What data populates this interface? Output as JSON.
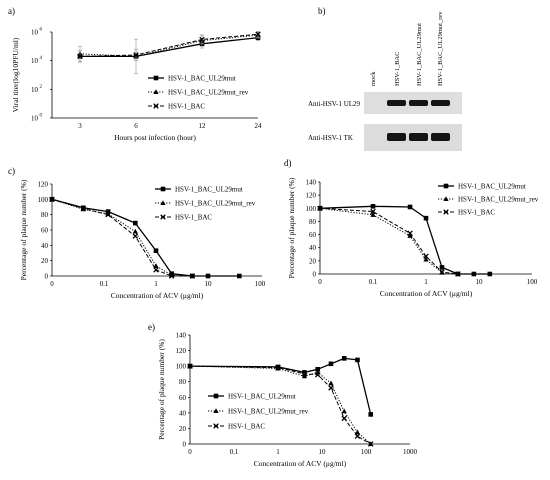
{
  "panels": {
    "a": "a)",
    "b": "b)",
    "c": "c)",
    "d": "d)",
    "e": "e)"
  },
  "colors": {
    "line": "#000000",
    "error": "#999999",
    "blot_bg": "#dcdcdc",
    "band": "#141414"
  },
  "blot": {
    "lanes": [
      "mock",
      "HSV-1_BAC",
      "HSV-1_BAC_UL29mut",
      "HSV-1_BAC_UL29mut_rev"
    ],
    "rows": [
      {
        "label": "Anti-HSV-1 UL29",
        "bands": [
          0,
          1,
          1,
          1
        ]
      },
      {
        "label": "Anti-HSV-1 TK",
        "bands": [
          0,
          1,
          1,
          1
        ]
      }
    ]
  },
  "chart_data": [
    {
      "panel": "a",
      "type": "line",
      "xlabel": "Hours post infection (hour)",
      "ylabel": "Viral titer(log10PFU/ml)",
      "y_scale": "log",
      "x": [
        "3",
        "6",
        "12",
        "24"
      ],
      "y_ticks": [
        "10^0",
        "10^2",
        "10^4",
        "10^6"
      ],
      "ylim": [
        1,
        1000000
      ],
      "legend": "right",
      "series": [
        {
          "name": "HSV-1_BAC_UL29mut",
          "marker": "square",
          "dash": "solid",
          "values": [
            20000,
            20000,
            150000,
            400000
          ],
          "errors": [
            0.4,
            0.3,
            0.3,
            0.2
          ]
        },
        {
          "name": "HSV-1_BAC_UL29mut_rev",
          "marker": "triangle",
          "dash": "dotted",
          "values": [
            30000,
            20000,
            250000,
            600000
          ],
          "errors": [
            0.5,
            1.2,
            0.4,
            0.2
          ]
        },
        {
          "name": "HSV-1_BAC",
          "marker": "x",
          "dash": "dashed",
          "values": [
            20000,
            25000,
            300000,
            700000
          ],
          "errors": [
            0.4,
            0.4,
            0.3,
            0.2
          ]
        }
      ]
    },
    {
      "panel": "c",
      "type": "line",
      "xlabel": "Concentration of ACV (μg/ml)",
      "ylabel": "Percentage of plaque number (%)",
      "x_scale": "log",
      "x_ticks": [
        "0",
        "0.1",
        "1",
        "10",
        "100"
      ],
      "ylim": [
        0,
        120
      ],
      "y_ticks": [
        0,
        20,
        40,
        60,
        80,
        100,
        120
      ],
      "legend": "top-right",
      "series": [
        {
          "name": "HSV-1_BAC_UL29mut",
          "marker": "square",
          "dash": "solid",
          "x": [
            0,
            0.04,
            0.12,
            0.4,
            1,
            2,
            5,
            10,
            40
          ],
          "values": [
            100,
            89,
            84,
            69,
            33,
            3,
            0,
            0,
            0
          ]
        },
        {
          "name": "HSV-1_BAC_UL29mut_rev",
          "marker": "triangle",
          "dash": "dotted",
          "x": [
            0,
            0.04,
            0.12,
            0.4,
            1,
            2,
            5
          ],
          "values": [
            100,
            87,
            81,
            58,
            13,
            1,
            0
          ]
        },
        {
          "name": "HSV-1_BAC",
          "marker": "x",
          "dash": "dashed",
          "x": [
            0,
            0.04,
            0.12,
            0.4,
            1,
            2,
            5
          ],
          "values": [
            100,
            88,
            80,
            52,
            8,
            0,
            0
          ]
        }
      ]
    },
    {
      "panel": "d",
      "type": "line",
      "xlabel": "Concentration of ACV (μg/ml)",
      "ylabel": "Percentage of plaque number (%)",
      "x_scale": "log",
      "x_ticks": [
        "0",
        "0.1",
        "1",
        "10",
        "100"
      ],
      "ylim": [
        0,
        140
      ],
      "y_ticks": [
        0,
        20,
        40,
        60,
        80,
        100,
        120,
        140
      ],
      "legend": "top-right",
      "series": [
        {
          "name": "HSV-1_BAC_UL29mut",
          "marker": "square",
          "dash": "solid",
          "x": [
            0,
            0.1,
            0.5,
            1,
            2,
            4,
            8,
            16
          ],
          "values": [
            100,
            103,
            102,
            85,
            10,
            0,
            0,
            0
          ]
        },
        {
          "name": "HSV-1_BAC_UL29mut_rev",
          "marker": "triangle",
          "dash": "dotted",
          "x": [
            0,
            0.1,
            0.5,
            1,
            2,
            4
          ],
          "values": [
            100,
            90,
            58,
            22,
            2,
            0
          ]
        },
        {
          "name": "HSV-1_BAC",
          "marker": "x",
          "dash": "dashed",
          "x": [
            0,
            0.1,
            0.5,
            1,
            2,
            4
          ],
          "values": [
            100,
            95,
            62,
            27,
            3,
            0
          ]
        }
      ]
    },
    {
      "panel": "e",
      "type": "line",
      "xlabel": "Concentration of ACV (μg/ml)",
      "ylabel": "Percentage of plaque number (%)",
      "x_scale": "log",
      "x_ticks": [
        "0",
        "0.1",
        "1",
        "10",
        "100",
        "1000"
      ],
      "ylim": [
        0,
        140
      ],
      "y_ticks": [
        0,
        20,
        40,
        60,
        80,
        100,
        120,
        140
      ],
      "legend": "right",
      "series": [
        {
          "name": "HSV-1_BAC_UL29mut",
          "marker": "square",
          "dash": "solid",
          "x": [
            0,
            1,
            4,
            8,
            16,
            32,
            64,
            128
          ],
          "values": [
            100,
            99,
            92,
            96,
            103,
            110,
            108,
            38
          ]
        },
        {
          "name": "HSV-1_BAC_UL29mut_rev",
          "marker": "triangle",
          "dash": "dotted",
          "x": [
            0,
            1,
            4,
            8,
            16,
            32,
            64,
            128
          ],
          "values": [
            100,
            97,
            87,
            92,
            78,
            42,
            15,
            0
          ]
        },
        {
          "name": "HSV-1_BAC",
          "marker": "x",
          "dash": "dashed",
          "x": [
            0,
            1,
            4,
            8,
            16,
            32,
            64,
            128
          ],
          "values": [
            100,
            98,
            90,
            89,
            72,
            33,
            10,
            0
          ]
        }
      ]
    }
  ]
}
